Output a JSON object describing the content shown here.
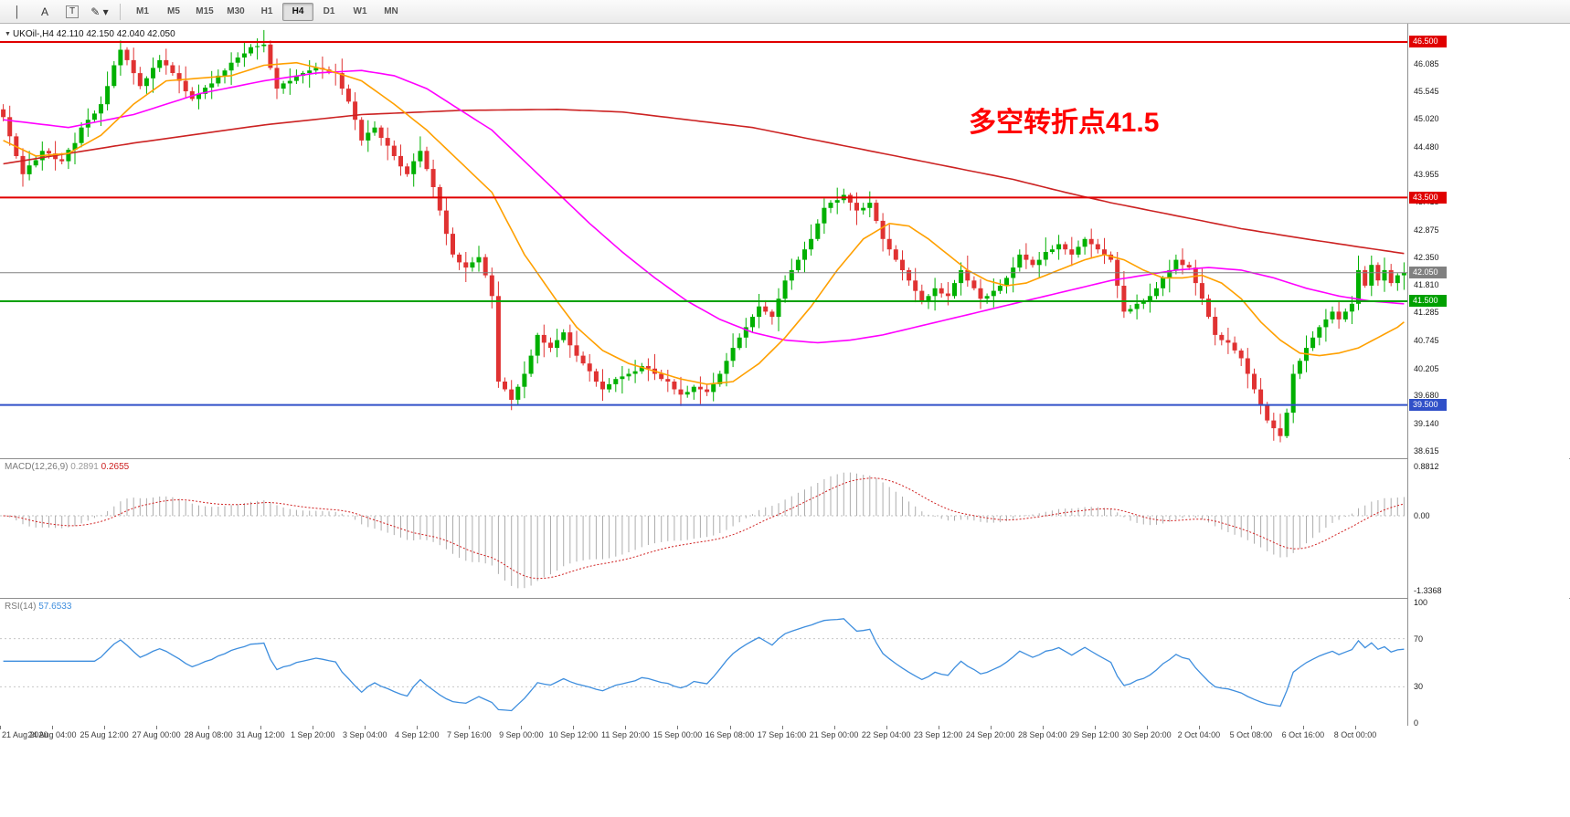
{
  "colors": {
    "bull": "#00B000",
    "bear": "#E03232",
    "ma_slow": "#CC2222",
    "ma_mid": "#FF00FF",
    "ma_fast": "#FFA000",
    "macd_hist": "#ADADAD",
    "macd_signal": "#D02020",
    "rsi": "#3E8EDE",
    "line_red": "#E00000",
    "line_green": "#00A000",
    "line_blue": "#3050C8",
    "current": "#808080"
  },
  "toolbar": {
    "tools": [
      {
        "id": "crosshair-tool",
        "glyph": "│"
      },
      {
        "id": "text-label-tool",
        "glyph": "A"
      },
      {
        "id": "text-frame-tool",
        "glyph": "T",
        "boxed": true
      },
      {
        "id": "draw-objects-tool",
        "glyph": "✎ ▾"
      }
    ],
    "timeframes": [
      {
        "label": "M1"
      },
      {
        "label": "M5"
      },
      {
        "label": "M15"
      },
      {
        "label": "M30"
      },
      {
        "label": "H1"
      },
      {
        "label": "H4",
        "active": true
      },
      {
        "label": "D1"
      },
      {
        "label": "W1"
      },
      {
        "label": "MN"
      }
    ]
  },
  "chart": {
    "quote": {
      "symbol": "UKOil-",
      "timeframe": "H4",
      "open": "42.110",
      "high": "42.150",
      "low": "42.040",
      "close": "42.050",
      "text": "UKOil-,H4 42.110 42.150 42.040 42.050"
    },
    "annotation": {
      "text": "多空转折点41.5",
      "color": "#FF0000"
    },
    "h_lines": [
      {
        "price": 46.5,
        "label": "46.500",
        "color_key": "line_red"
      },
      {
        "price": 43.5,
        "label": "43.500",
        "color_key": "line_red"
      },
      {
        "price": 41.5,
        "label": "41.500",
        "color_key": "line_green"
      },
      {
        "price": 39.5,
        "label": "39.500",
        "color_key": "line_blue"
      },
      {
        "price": 42.05,
        "label": "42.050",
        "color_key": "current",
        "current": true
      }
    ],
    "price_axis_ticks": [
      {
        "t": "46.500",
        "badge": "line_red"
      },
      {
        "t": "46.085"
      },
      {
        "t": "45.545"
      },
      {
        "t": "45.020"
      },
      {
        "t": "44.480"
      },
      {
        "t": "43.955"
      },
      {
        "t": "43.500",
        "badge": "line_red"
      },
      {
        "t": "43.415"
      },
      {
        "t": "42.875"
      },
      {
        "t": "42.350"
      },
      {
        "t": "42.050",
        "badge": "current"
      },
      {
        "t": "41.810"
      },
      {
        "t": "41.500",
        "badge": "line_green"
      },
      {
        "t": "41.285"
      },
      {
        "t": "40.745"
      },
      {
        "t": "40.205"
      },
      {
        "t": "39.680"
      },
      {
        "t": "39.500",
        "badge": "line_blue"
      },
      {
        "t": "39.140"
      },
      {
        "t": "38.615"
      }
    ]
  },
  "chart_data": [
    {
      "type": "candlestick",
      "symbol": "UKOil",
      "timeframe": "H4",
      "y_range": [
        38.472,
        46.834
      ],
      "bars_per_label": 8,
      "x_labels": [
        "21 Aug 2020",
        "24 Aug 04:00",
        "25 Aug 12:00",
        "27 Aug 00:00",
        "28 Aug 08:00",
        "31 Aug 12:00",
        "1 Sep 20:00",
        "3 Sep 04:00",
        "4 Sep 12:00",
        "7 Sep 16:00",
        "9 Sep 00:00",
        "10 Sep 12:00",
        "11 Sep 20:00",
        "15 Sep 00:00",
        "16 Sep 08:00",
        "17 Sep 16:00",
        "21 Sep 00:00",
        "22 Sep 04:00",
        "23 Sep 12:00",
        "24 Sep 20:00",
        "28 Sep 04:00",
        "29 Sep 12:00",
        "30 Sep 20:00",
        "2 Oct 04:00",
        "5 Oct 08:00",
        "6 Oct 16:00",
        "8 Oct 00:00"
      ],
      "first_open": 45.2,
      "closes": [
        45.05,
        44.68,
        44.3,
        43.95,
        44.12,
        44.22,
        44.4,
        44.35,
        44.24,
        44.2,
        44.42,
        44.55,
        44.85,
        45.0,
        45.12,
        45.3,
        45.65,
        46.05,
        46.35,
        46.15,
        45.9,
        45.65,
        45.8,
        46.0,
        46.15,
        46.05,
        45.9,
        45.75,
        45.55,
        45.4,
        45.5,
        45.62,
        45.7,
        45.85,
        45.95,
        46.1,
        46.2,
        46.28,
        46.4,
        46.42,
        46.45,
        46.0,
        45.6,
        45.7,
        45.75,
        45.85,
        45.9,
        45.95,
        46.0,
        45.97,
        45.93,
        45.9,
        45.6,
        45.35,
        45.0,
        44.6,
        44.75,
        44.85,
        44.65,
        44.5,
        44.3,
        44.1,
        43.95,
        44.2,
        44.4,
        44.05,
        43.7,
        43.25,
        42.8,
        42.4,
        42.25,
        42.15,
        42.25,
        42.35,
        42.0,
        41.6,
        39.95,
        39.8,
        39.6,
        39.85,
        40.1,
        40.45,
        40.85,
        40.7,
        40.6,
        40.75,
        40.9,
        40.65,
        40.45,
        40.3,
        40.15,
        39.95,
        39.8,
        39.9,
        40.0,
        40.05,
        40.1,
        40.15,
        40.25,
        40.2,
        40.1,
        40.0,
        39.95,
        39.8,
        39.7,
        39.75,
        39.85,
        39.8,
        39.75,
        39.9,
        40.1,
        40.35,
        40.6,
        40.8,
        41.0,
        41.2,
        41.4,
        41.3,
        41.2,
        41.55,
        41.9,
        42.1,
        42.3,
        42.5,
        42.7,
        43.0,
        43.3,
        43.4,
        43.45,
        43.55,
        43.4,
        43.25,
        43.3,
        43.4,
        43.05,
        42.7,
        42.5,
        42.3,
        42.1,
        41.9,
        41.7,
        41.5,
        41.6,
        41.75,
        41.65,
        41.6,
        41.85,
        42.1,
        41.9,
        41.75,
        41.55,
        41.6,
        41.7,
        41.8,
        41.95,
        42.15,
        42.4,
        42.3,
        42.2,
        42.3,
        42.45,
        42.5,
        42.6,
        42.5,
        42.4,
        42.55,
        42.7,
        42.6,
        42.5,
        42.4,
        42.3,
        41.8,
        41.3,
        41.35,
        41.45,
        41.5,
        41.6,
        41.75,
        41.95,
        42.1,
        42.3,
        42.2,
        42.15,
        41.85,
        41.55,
        41.2,
        40.85,
        40.75,
        40.7,
        40.55,
        40.4,
        40.1,
        39.8,
        39.5,
        39.2,
        39.05,
        38.9,
        39.35,
        40.1,
        40.35,
        40.6,
        40.8,
        41.0,
        41.15,
        41.3,
        41.15,
        41.3,
        41.45,
        42.1,
        41.8,
        42.2,
        41.9,
        42.1,
        41.85,
        42.0,
        42.05
      ],
      "wick_pattern": [
        0.1,
        0.22,
        0.06,
        0.15,
        0.28,
        0.08,
        0.18,
        0.05,
        0.24,
        0.12,
        0.04,
        0.2
      ],
      "moving_averages": [
        {
          "name": "slow",
          "color_key": "ma_slow",
          "points": [
            [
              0,
              44.15
            ],
            [
              20,
              44.55
            ],
            [
              40,
              44.9
            ],
            [
              55,
              45.1
            ],
            [
              70,
              45.18
            ],
            [
              85,
              45.2
            ],
            [
              95,
              45.15
            ],
            [
              105,
              45.0
            ],
            [
              115,
              44.85
            ],
            [
              125,
              44.6
            ],
            [
              135,
              44.35
            ],
            [
              145,
              44.1
            ],
            [
              155,
              43.85
            ],
            [
              163,
              43.6
            ],
            [
              170,
              43.4
            ],
            [
              180,
              43.15
            ],
            [
              190,
              42.9
            ],
            [
              200,
              42.7
            ],
            [
              208,
              42.55
            ],
            [
              215,
              42.42
            ]
          ]
        },
        {
          "name": "medium",
          "color_key": "ma_mid",
          "points": [
            [
              0,
              45.0
            ],
            [
              10,
              44.85
            ],
            [
              20,
              45.1
            ],
            [
              30,
              45.5
            ],
            [
              40,
              45.75
            ],
            [
              48,
              45.9
            ],
            [
              55,
              45.95
            ],
            [
              60,
              45.85
            ],
            [
              65,
              45.6
            ],
            [
              70,
              45.2
            ],
            [
              75,
              44.8
            ],
            [
              80,
              44.2
            ],
            [
              85,
              43.6
            ],
            [
              90,
              43.0
            ],
            [
              95,
              42.45
            ],
            [
              100,
              41.95
            ],
            [
              105,
              41.5
            ],
            [
              110,
              41.15
            ],
            [
              115,
              40.9
            ],
            [
              120,
              40.75
            ],
            [
              125,
              40.7
            ],
            [
              130,
              40.75
            ],
            [
              135,
              40.85
            ],
            [
              140,
              41.0
            ],
            [
              145,
              41.15
            ],
            [
              150,
              41.3
            ],
            [
              155,
              41.45
            ],
            [
              160,
              41.6
            ],
            [
              165,
              41.75
            ],
            [
              170,
              41.9
            ],
            [
              175,
              42.0
            ],
            [
              180,
              42.1
            ],
            [
              185,
              42.15
            ],
            [
              190,
              42.1
            ],
            [
              195,
              41.95
            ],
            [
              200,
              41.75
            ],
            [
              205,
              41.6
            ],
            [
              210,
              41.5
            ],
            [
              215,
              41.45
            ]
          ]
        },
        {
          "name": "fast",
          "color_key": "ma_fast",
          "points": [
            [
              0,
              44.6
            ],
            [
              5,
              44.3
            ],
            [
              10,
              44.35
            ],
            [
              15,
              44.7
            ],
            [
              20,
              45.3
            ],
            [
              25,
              45.75
            ],
            [
              30,
              45.8
            ],
            [
              35,
              45.85
            ],
            [
              40,
              46.05
            ],
            [
              45,
              46.1
            ],
            [
              50,
              45.95
            ],
            [
              55,
              45.75
            ],
            [
              60,
              45.3
            ],
            [
              65,
              44.8
            ],
            [
              70,
              44.2
            ],
            [
              75,
              43.6
            ],
            [
              80,
              42.4
            ],
            [
              85,
              41.5
            ],
            [
              88,
              41.0
            ],
            [
              92,
              40.55
            ],
            [
              96,
              40.3
            ],
            [
              100,
              40.15
            ],
            [
              104,
              40.0
            ],
            [
              108,
              39.9
            ],
            [
              112,
              39.95
            ],
            [
              116,
              40.3
            ],
            [
              120,
              40.8
            ],
            [
              124,
              41.4
            ],
            [
              128,
              42.1
            ],
            [
              132,
              42.7
            ],
            [
              136,
              43.0
            ],
            [
              139,
              42.95
            ],
            [
              142,
              42.7
            ],
            [
              145,
              42.4
            ],
            [
              148,
              42.1
            ],
            [
              151,
              41.9
            ],
            [
              154,
              41.8
            ],
            [
              157,
              41.85
            ],
            [
              160,
              42.0
            ],
            [
              163,
              42.15
            ],
            [
              166,
              42.3
            ],
            [
              169,
              42.4
            ],
            [
              172,
              42.3
            ],
            [
              175,
              42.1
            ],
            [
              178,
              41.95
            ],
            [
              181,
              41.95
            ],
            [
              184,
              42.0
            ],
            [
              187,
              41.85
            ],
            [
              190,
              41.55
            ],
            [
              193,
              41.1
            ],
            [
              196,
              40.75
            ],
            [
              199,
              40.5
            ],
            [
              202,
              40.45
            ],
            [
              205,
              40.5
            ],
            [
              208,
              40.6
            ],
            [
              211,
              40.8
            ],
            [
              214,
              41.0
            ],
            [
              215,
              41.1
            ]
          ]
        }
      ]
    },
    {
      "type": "macd",
      "label": "MACD(12,26,9)",
      "params": [
        12,
        26,
        9
      ],
      "values_text": [
        "0.2891",
        "0.2655"
      ],
      "y_range": [
        -1.3368,
        0.8812
      ],
      "axis_ticks": [
        "0.8812",
        "0.00",
        "-1.3368"
      ],
      "computed_from": "closes"
    },
    {
      "type": "rsi",
      "label": "RSI(14)",
      "period": 14,
      "value_text": "57.6533",
      "y_range": [
        0,
        100
      ],
      "levels": [
        30,
        70
      ],
      "axis_ticks": [
        "100",
        "70",
        "30",
        "0"
      ],
      "computed_from": "closes"
    }
  ]
}
